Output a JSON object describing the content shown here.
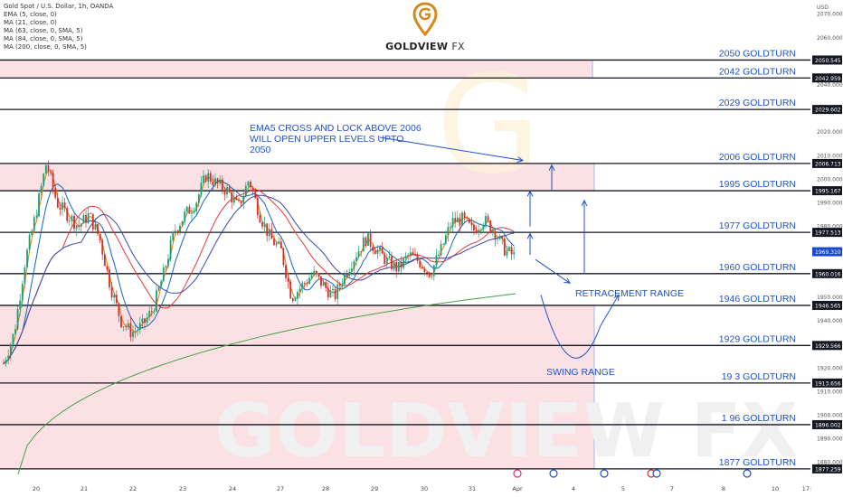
{
  "instrument": {
    "title": "Gold Spot / U.S. Dollar, 1h, OANDA"
  },
  "indicators": [
    "EMA (5, close, 0)",
    "MA (21, close, 0)",
    "MA (63, close, 0, SMA, 5)",
    "MA (84, close, 0, SMA, 5)",
    "MA (200, close, 0, SMA, 5)"
  ],
  "brand": {
    "name": "GOLDVIEW",
    "suffix": "FX",
    "watermark": "GOLDVIEW FX"
  },
  "annotation": {
    "line1": "EMA5 CROSS AND LOCK ABOVE 2006",
    "line2": "WILL OPEN UPPER LEVELS UPTO",
    "line3": "2050",
    "retracement": "RETRACEMENT RANGE",
    "swing": "SWING RANGE"
  },
  "colors": {
    "level_line": "#131722",
    "label_blue": "#1e53c9",
    "zone_fill": "#fbe1e3",
    "price_marker": "#1848cc",
    "ema5": "#f57c00",
    "ma21": "#1565c0",
    "ma63": "#e53935",
    "ma84": "#3949ab",
    "ma200": "#43a047"
  },
  "chart_data": {
    "type": "line",
    "ylabel": "USD",
    "ylim": [
      1873,
      2076
    ],
    "y_ticks": [
      1880,
      1890,
      1900,
      1910,
      1920,
      1930,
      1940,
      1950,
      1960,
      1970,
      1980,
      1990,
      2000,
      2010,
      2020,
      2030,
      2040,
      2050,
      2060,
      2070
    ],
    "x_ticks": [
      "20",
      "21",
      "22",
      "23",
      "24",
      "27",
      "28",
      "29",
      "30",
      "31",
      "Apr",
      "4",
      "5",
      "7",
      "8",
      "10",
      "17:"
    ],
    "levels": [
      {
        "value": 2050.545,
        "label": "2050 GOLDTURN",
        "tag": "2050.545"
      },
      {
        "value": 2042.959,
        "label": "2042 GOLDTURN",
        "tag": "2042.959"
      },
      {
        "value": 2029.602,
        "label": "2029 GOLDTURN",
        "tag": "2029.602"
      },
      {
        "value": 2006.713,
        "label": "2006 GOLDTURN",
        "tag": "2006.713"
      },
      {
        "value": 1995.167,
        "label": "1995 GOLDTURN",
        "tag": "1995.167"
      },
      {
        "value": 1977.513,
        "label": "1977 GOLDTURN",
        "tag": "1977.513"
      },
      {
        "value": 1960.016,
        "label": "1960 GOLDTURN",
        "tag": "1960.016"
      },
      {
        "value": 1946.565,
        "label": "1946 GOLDTURN",
        "tag": "1946.565"
      },
      {
        "value": 1929.566,
        "label": "1929 GOLDTURN",
        "tag": "1929.566"
      },
      {
        "value": 1913.656,
        "label": "19 3 GOLDTURN",
        "tag": "1913.656"
      },
      {
        "value": 1896.002,
        "label": "1 96 GOLDTURN",
        "tag": "1896.002"
      },
      {
        "value": 1877.259,
        "label": "1877 GOLDTURN",
        "tag": "1877.259"
      }
    ],
    "zones": [
      [
        2042.959,
        2050.545
      ],
      [
        1995.167,
        2006.713
      ],
      [
        1877.259,
        1946.565
      ]
    ],
    "current_price": {
      "value": 1969.31,
      "tag": "1969.310"
    },
    "price_path": [
      1922,
      1935,
      1965,
      1985,
      2007,
      1990,
      1985,
      1980,
      1985,
      1975,
      1955,
      1940,
      1935,
      1938,
      1945,
      1960,
      1978,
      1985,
      1990,
      2002,
      1998,
      1995,
      1988,
      2000,
      1985,
      1975,
      1970,
      1950,
      1955,
      1960,
      1955,
      1950,
      1960,
      1968,
      1975,
      1970,
      1965,
      1962,
      1968,
      1965,
      1960,
      1970,
      1982,
      1983,
      1978,
      1983,
      1978,
      1970,
      1967
    ]
  }
}
